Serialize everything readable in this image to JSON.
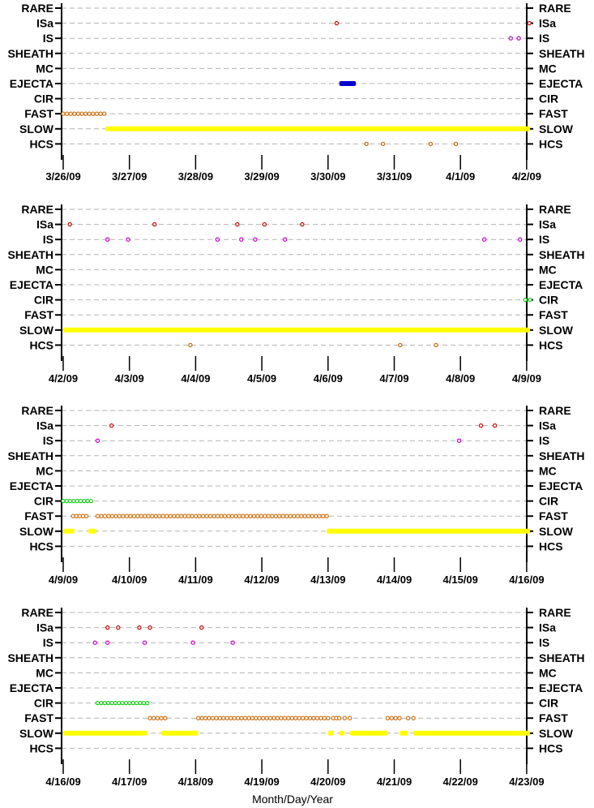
{
  "figure": {
    "xlabel": "Month/Day/Year",
    "row_labels": [
      "RARE",
      "ISa",
      "IS",
      "SHEATH",
      "MC",
      "EJECTA",
      "CIR",
      "FAST",
      "SLOW",
      "HCS"
    ]
  },
  "colors": {
    "ISa": "#cc0000",
    "IS": "#cc00cc",
    "EJECTA": "#0000cc",
    "CIR": "#00cc00",
    "FAST": "#cc6600",
    "SLOW": "#ffff00",
    "HCS": "#cc6600",
    "grid": "#b4b4b4"
  },
  "chart_data": [
    {
      "type": "scatter",
      "x_ticks": [
        "3/26/09",
        "3/27/09",
        "3/28/09",
        "3/29/09",
        "3/30/09",
        "3/31/09",
        "4/1/09",
        "4/2/09"
      ],
      "xlim_days": [
        0,
        7.05
      ],
      "categories": [
        "RARE",
        "ISa",
        "IS",
        "SHEATH",
        "MC",
        "EJECTA",
        "CIR",
        "FAST",
        "SLOW",
        "HCS"
      ],
      "series": {
        "ISa": [
          4.13,
          7.04
        ],
        "IS": [
          6.76,
          6.88
        ],
        "EJECTA": [
          [
            4.17,
            4.42
          ]
        ],
        "FAST": [
          [
            0.0,
            0.62
          ]
        ],
        "SLOW": [
          [
            0.64,
            7.05
          ]
        ],
        "HCS": [
          4.58,
          4.83,
          5.55,
          5.93
        ]
      }
    },
    {
      "type": "scatter",
      "x_ticks": [
        "4/2/09",
        "4/3/09",
        "4/4/09",
        "4/5/09",
        "4/6/09",
        "4/7/09",
        "4/8/09",
        "4/9/09"
      ],
      "xlim_days": [
        0,
        7.05
      ],
      "categories": [
        "RARE",
        "ISa",
        "IS",
        "SHEATH",
        "MC",
        "EJECTA",
        "CIR",
        "FAST",
        "SLOW",
        "HCS"
      ],
      "series": {
        "ISa": [
          0.1,
          1.38,
          2.63,
          3.04,
          3.61
        ],
        "IS": [
          0.67,
          0.98,
          2.33,
          2.69,
          2.9,
          3.35,
          6.36,
          6.9
        ],
        "CIR": [
          [
            6.98,
            7.05
          ]
        ],
        "SLOW": [
          [
            0.0,
            7.05
          ]
        ],
        "HCS": [
          1.92,
          5.09,
          5.63
        ]
      }
    },
    {
      "type": "scatter",
      "x_ticks": [
        "4/9/09",
        "4/10/09",
        "4/11/09",
        "4/12/09",
        "4/13/09",
        "4/14/09",
        "4/15/09",
        "4/16/09"
      ],
      "xlim_days": [
        0,
        7.05
      ],
      "categories": [
        "RARE",
        "ISa",
        "IS",
        "SHEATH",
        "MC",
        "EJECTA",
        "CIR",
        "FAST",
        "SLOW",
        "HCS"
      ],
      "series": {
        "ISa": [
          0.73,
          6.31,
          6.52
        ],
        "IS": [
          0.52,
          5.98
        ],
        "CIR": [
          [
            0.0,
            0.42
          ]
        ],
        "FAST": [
          [
            0.15,
            0.35
          ],
          [
            0.52,
            3.98
          ]
        ],
        "SLOW": [
          [
            0.0,
            0.17
          ],
          [
            0.38,
            0.5
          ],
          [
            3.98,
            7.05
          ]
        ]
      }
    },
    {
      "type": "scatter",
      "x_ticks": [
        "4/16/09",
        "4/17/09",
        "4/18/09",
        "4/19/09",
        "4/20/09",
        "4/21/09",
        "4/22/09",
        "4/23/09"
      ],
      "xlim_days": [
        0,
        7.05
      ],
      "categories": [
        "RARE",
        "ISa",
        "IS",
        "SHEATH",
        "MC",
        "EJECTA",
        "CIR",
        "FAST",
        "SLOW",
        "HCS"
      ],
      "series": {
        "ISa": [
          0.67,
          0.83,
          1.15,
          1.31,
          2.09
        ],
        "IS": [
          0.48,
          0.67,
          1.23,
          1.96,
          2.56
        ],
        "CIR": [
          [
            0.52,
            1.27
          ]
        ],
        "FAST": [
          [
            1.31,
            1.54
          ],
          [
            2.04,
            4.0
          ],
          [
            4.08,
            4.17
          ],
          [
            4.25,
            4.33
          ],
          [
            4.9,
            5.08
          ],
          [
            5.21,
            5.29
          ]
        ],
        "SLOW": [
          [
            0.0,
            1.27
          ],
          [
            1.48,
            2.04
          ],
          [
            4.0,
            4.08
          ],
          [
            4.17,
            4.25
          ],
          [
            4.33,
            4.9
          ],
          [
            5.08,
            5.21
          ],
          [
            5.29,
            7.05
          ]
        ]
      }
    }
  ]
}
